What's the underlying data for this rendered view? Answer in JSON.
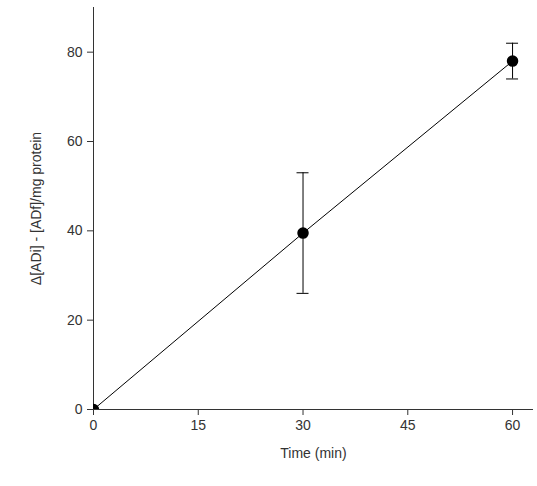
{
  "chart_data": {
    "type": "line",
    "marker": "circle",
    "color": "#000000",
    "x_label": "Time (min)",
    "y_label": "Δ[ADi] - [ADf]/mg protein",
    "x": [
      0,
      30,
      60
    ],
    "values": [
      0,
      39.5,
      78
    ],
    "error": [
      0,
      13.5,
      4
    ],
    "xlim": [
      0,
      63
    ],
    "xticks": [
      0,
      15,
      30,
      45,
      60
    ],
    "ylim": [
      0,
      90
    ],
    "yticks": [
      0,
      20,
      40,
      60,
      80
    ],
    "grid": false
  }
}
